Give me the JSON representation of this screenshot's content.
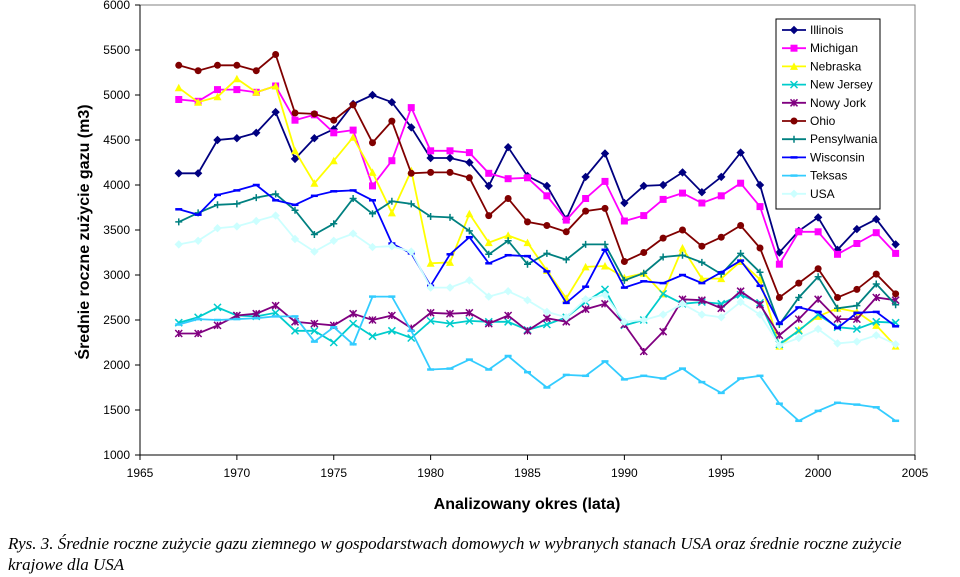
{
  "caption": "Rys. 3.  Średnie roczne zużycie gazu ziemnego w gospodarstwach  domowych w wybranych stanach USA oraz średnie roczne  zużycie krajowe dla USA",
  "chart_data": {
    "type": "line",
    "title": "",
    "xlabel": "Analizowany okres (lata)",
    "ylabel": "Średnie roczne zużycie gazu (m3)",
    "xlim": [
      1965,
      2005
    ],
    "ylim": [
      1000,
      6000
    ],
    "xticks": [
      1965,
      1970,
      1975,
      1980,
      1985,
      1990,
      1995,
      2000,
      2005
    ],
    "yticks": [
      1000,
      1500,
      2000,
      2500,
      3000,
      3500,
      4000,
      4500,
      5000,
      5500,
      6000
    ],
    "grid": false,
    "legend_position": "top-right",
    "x": [
      1967,
      1968,
      1969,
      1970,
      1971,
      1972,
      1973,
      1974,
      1975,
      1976,
      1977,
      1978,
      1979,
      1980,
      1981,
      1982,
      1983,
      1984,
      1985,
      1986,
      1987,
      1988,
      1989,
      1990,
      1991,
      1992,
      1993,
      1994,
      1995,
      1996,
      1997,
      1998,
      1999,
      2000,
      2001,
      2002,
      2003,
      2004
    ],
    "series": [
      {
        "name": "Illinois",
        "color": "#000080",
        "marker": "diamond",
        "values": [
          4130,
          4130,
          4500,
          4520,
          4580,
          4810,
          4290,
          4520,
          4620,
          4900,
          5000,
          4920,
          4640,
          4300,
          4300,
          4250,
          3990,
          4420,
          4100,
          3990,
          3620,
          4090,
          4350,
          3800,
          3990,
          4000,
          4140,
          3920,
          4090,
          4360,
          4000,
          3250,
          3490,
          3640,
          3280,
          3510,
          3620,
          3340
        ]
      },
      {
        "name": "Michigan",
        "color": "#FF00FF",
        "marker": "square",
        "values": [
          4950,
          4930,
          5060,
          5060,
          5030,
          5100,
          4720,
          4780,
          4580,
          4610,
          3990,
          4270,
          4860,
          4380,
          4380,
          4360,
          4130,
          4070,
          4080,
          3880,
          3610,
          3850,
          4040,
          3600,
          3660,
          3840,
          3910,
          3800,
          3880,
          4020,
          3760,
          3120,
          3480,
          3480,
          3230,
          3350,
          3470,
          3240
        ]
      },
      {
        "name": "Nebraska",
        "color": "#FFFF00",
        "marker": "triangle",
        "values": [
          5080,
          4920,
          4980,
          5180,
          5030,
          5100,
          4380,
          4020,
          4270,
          4530,
          4140,
          3690,
          4160,
          3130,
          3140,
          3680,
          3360,
          3440,
          3360,
          3050,
          2740,
          3090,
          3100,
          2970,
          3020,
          2790,
          3300,
          2960,
          2960,
          3150,
          2950,
          2210,
          2390,
          2540,
          2630,
          2590,
          2440,
          2210
        ]
      },
      {
        "name": "New Jersey",
        "color": "#00CCCC",
        "marker": "x",
        "values": [
          2470,
          2530,
          2640,
          2550,
          2540,
          2580,
          2380,
          2380,
          2250,
          2460,
          2320,
          2380,
          2300,
          2490,
          2460,
          2490,
          2480,
          2480,
          2390,
          2450,
          2530,
          2700,
          2840,
          2440,
          2500,
          2790,
          2680,
          2700,
          2680,
          2780,
          2690,
          2230,
          2380,
          2560,
          2420,
          2400,
          2480,
          2470
        ]
      },
      {
        "name": "Nowy Jork",
        "color": "#800080",
        "marker": "star",
        "values": [
          2350,
          2350,
          2440,
          2550,
          2570,
          2660,
          2480,
          2460,
          2440,
          2570,
          2500,
          2550,
          2410,
          2580,
          2570,
          2580,
          2460,
          2550,
          2380,
          2520,
          2480,
          2620,
          2680,
          2450,
          2150,
          2370,
          2730,
          2720,
          2630,
          2820,
          2670,
          2330,
          2510,
          2730,
          2510,
          2510,
          2750,
          2720
        ]
      },
      {
        "name": "Ohio",
        "color": "#800000",
        "marker": "circle",
        "values": [
          5330,
          5270,
          5330,
          5330,
          5270,
          5450,
          4800,
          4790,
          4720,
          4890,
          4470,
          4710,
          4130,
          4140,
          4140,
          4080,
          3660,
          3850,
          3590,
          3550,
          3480,
          3710,
          3740,
          3150,
          3250,
          3410,
          3500,
          3320,
          3420,
          3550,
          3300,
          2750,
          2910,
          3070,
          2750,
          2840,
          3010,
          2790
        ]
      },
      {
        "name": "Pensylwania",
        "color": "#008080",
        "marker": "plus",
        "values": [
          3590,
          3690,
          3780,
          3790,
          3860,
          3900,
          3720,
          3450,
          3570,
          3850,
          3680,
          3820,
          3790,
          3650,
          3640,
          3490,
          3230,
          3380,
          3120,
          3240,
          3170,
          3340,
          3340,
          2940,
          3020,
          3200,
          3220,
          3140,
          3010,
          3240,
          3030,
          2450,
          2750,
          2980,
          2630,
          2660,
          2900,
          2670
        ]
      },
      {
        "name": "Wisconsin",
        "color": "#0000FF",
        "marker": "dash",
        "values": [
          3730,
          3670,
          3890,
          3940,
          4000,
          3830,
          3780,
          3880,
          3930,
          3940,
          3830,
          3350,
          3240,
          2880,
          3230,
          3420,
          3130,
          3220,
          3210,
          3040,
          2690,
          2870,
          3280,
          2860,
          2930,
          2910,
          3000,
          2910,
          3030,
          3160,
          2880,
          2460,
          2640,
          2590,
          2410,
          2580,
          2590,
          2430
        ]
      },
      {
        "name": "Teksas",
        "color": "#33CCFF",
        "marker": "dash",
        "values": [
          2450,
          2510,
          2500,
          2510,
          2520,
          2540,
          2540,
          2260,
          2420,
          2230,
          2760,
          2760,
          2380,
          1950,
          1960,
          2060,
          1950,
          2100,
          1920,
          1750,
          1890,
          1880,
          2040,
          1840,
          1880,
          1850,
          1960,
          1810,
          1690,
          1850,
          1880,
          1570,
          1380,
          1490,
          1580,
          1560,
          1530,
          1380
        ]
      },
      {
        "name": "USA",
        "color": "#CCFFFF",
        "marker": "diamond",
        "values": [
          3340,
          3380,
          3520,
          3540,
          3600,
          3660,
          3400,
          3260,
          3380,
          3460,
          3310,
          3320,
          3260,
          2860,
          2860,
          2940,
          2760,
          2820,
          2720,
          2590,
          2530,
          2730,
          2780,
          2480,
          2500,
          2560,
          2680,
          2560,
          2530,
          2700,
          2560,
          2220,
          2300,
          2400,
          2240,
          2260,
          2330,
          2230
        ]
      }
    ]
  }
}
